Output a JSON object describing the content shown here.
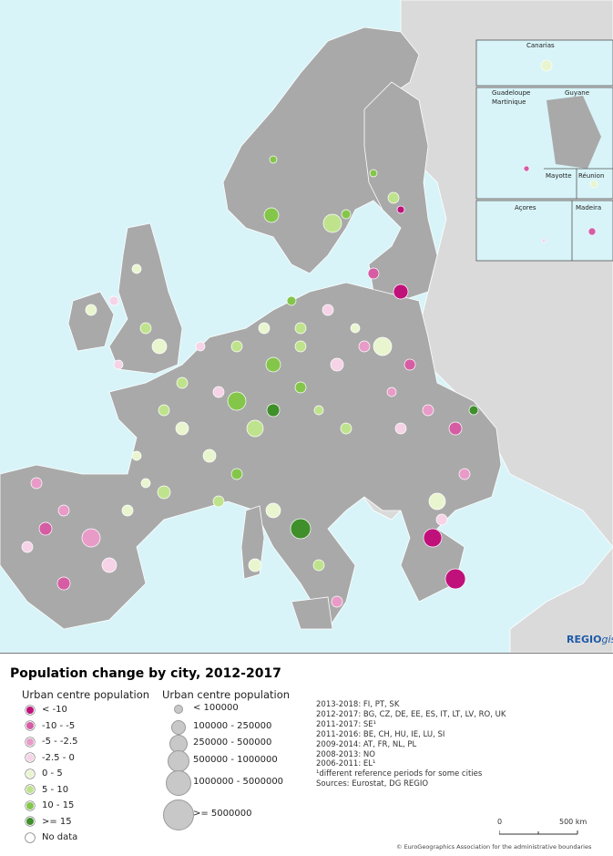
{
  "map": {
    "insets": [
      "Canarias",
      "Guadeloupe",
      "Martinique",
      "Guyane",
      "Mayotte",
      "Réunion",
      "Açores",
      "Madeira"
    ],
    "brand": {
      "main": "REGIO",
      "suffix": "gis"
    }
  },
  "legend": {
    "title": "Population change by city, 2012-2017",
    "change_heading": "Urban centre population",
    "change_classes": [
      {
        "label": "< -10",
        "color": "#c0117b"
      },
      {
        "label": "-10 - -5",
        "color": "#d65ca4"
      },
      {
        "label": "-5 - -2.5",
        "color": "#e99bc8"
      },
      {
        "label": "-2.5 - 0",
        "color": "#f6d3e7"
      },
      {
        "label": "0 - 5",
        "color": "#e9f5cf"
      },
      {
        "label": "5 - 10",
        "color": "#bfe38d"
      },
      {
        "label": "10 - 15",
        "color": "#84c64a"
      },
      {
        "label": ">= 15",
        "color": "#3f8f2a"
      },
      {
        "label": "No data",
        "color": "#ffffff"
      }
    ],
    "size_heading": "Urban centre population",
    "size_classes": [
      "< 100000",
      "100000 - 250000",
      "250000 - 500000",
      "500000 - 1000000",
      "1000000 - 5000000",
      ">= 5000000"
    ],
    "notes": [
      "2013-2018: FI, PT, SK",
      "2012-2017: BG, CZ, DE, EE, ES, IT, LT, LV, RO, UK",
      "2011-2017: SE¹",
      "2011-2016: BE, CH, HU, IE, LU, SI",
      "2009-2014: AT, FR, NL, PL",
      "2008-2013: NO",
      "2006-2011: EL¹",
      "¹different reference periods for some cities",
      "Sources: Eurostat, DG REGIO"
    ],
    "scale": {
      "start": "0",
      "end": "500 km"
    },
    "copyright": "© EuroGeographics Association for the administrative boundaries"
  }
}
